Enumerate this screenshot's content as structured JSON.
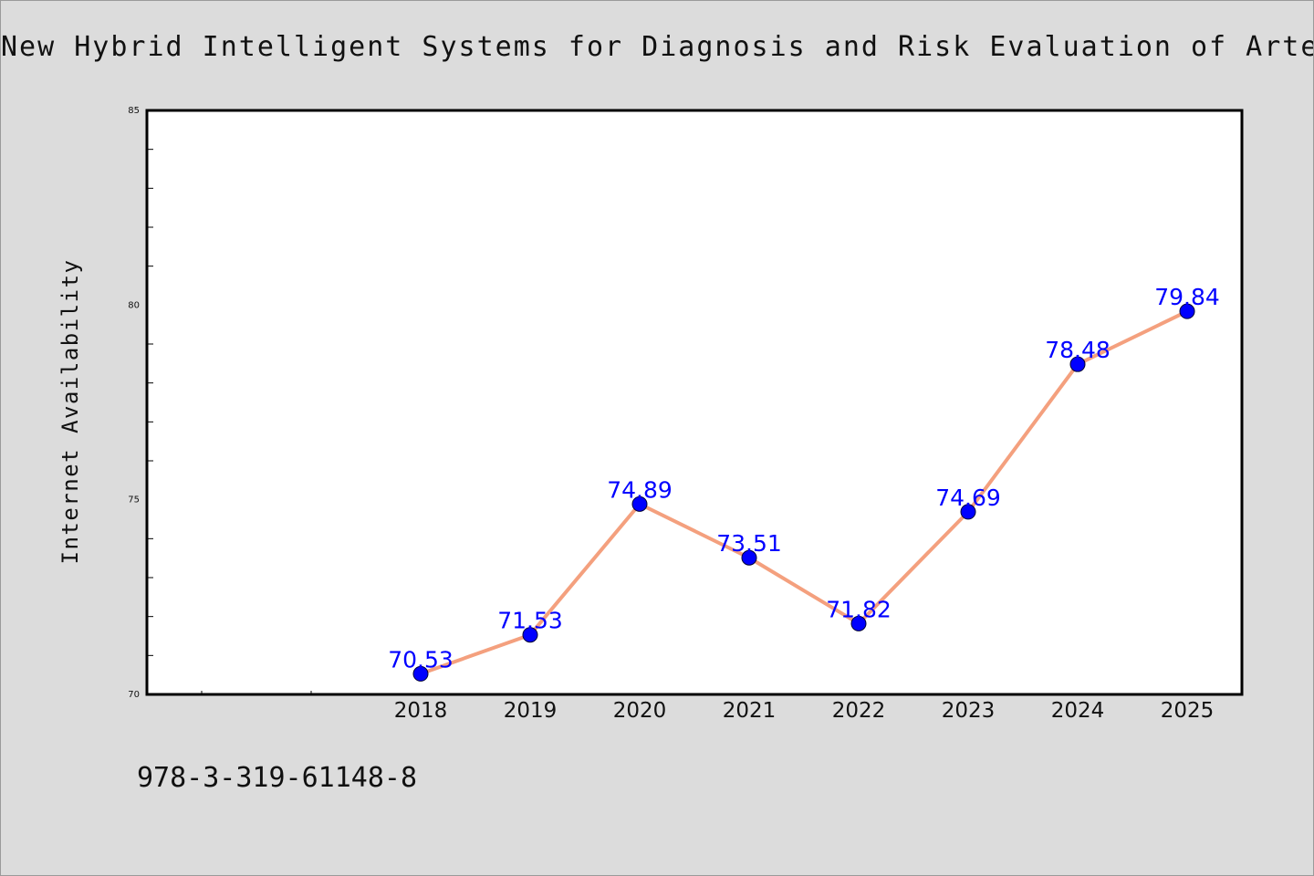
{
  "chart_data": {
    "type": "line",
    "title": "New Hybrid Intelligent Systems for Diagnosis and Risk Evaluation of Arterial Hyp",
    "xlabel": "",
    "ylabel": "Internet Availability",
    "categories": [
      "2018",
      "2019",
      "2020",
      "2021",
      "2022",
      "2023",
      "2024",
      "2025"
    ],
    "series": [
      {
        "values": [
          70.53,
          71.53,
          74.89,
          73.51,
          71.82,
          74.69,
          78.48,
          79.84
        ],
        "labels": [
          "70.53",
          "71.53",
          "74.89",
          "73.51",
          "71.82",
          "74.69",
          "78.48",
          "79.84"
        ],
        "line_color": "#f4a07e",
        "marker_color": "#0000ff"
      }
    ],
    "ylim": [
      70,
      85
    ],
    "yticks": [
      "70",
      "75",
      "80",
      "85"
    ],
    "grid": false,
    "legend": "none"
  },
  "footer": {
    "isbn": "978-3-319-61148-8"
  }
}
